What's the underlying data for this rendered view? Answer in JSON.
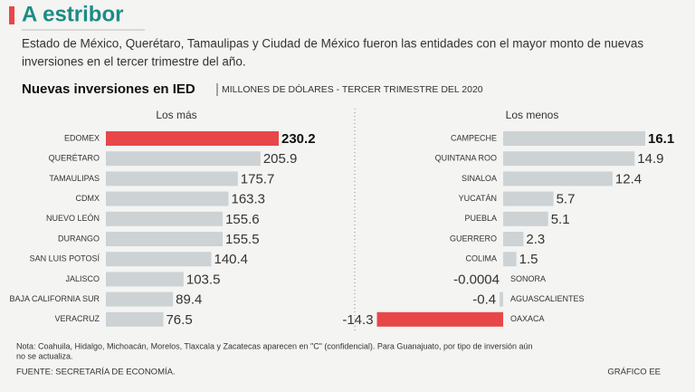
{
  "header": {
    "title": "A estribor",
    "description": [
      "Estado de México, Querétaro, Tamaulipas y Ciudad de México fueron las entidades con el mayor monto de nuevas",
      "inversiones en el tercer trimestre del año."
    ]
  },
  "chart_title": "Nuevas inversiones en IED",
  "chart_subtitle": "MILLONES DE DÓLARES - TERCER TRIMESTRE DEL 2020",
  "chart_data": [
    {
      "type": "bar",
      "orientation": "horizontal",
      "title": "Los más",
      "categories": [
        "EDOMEX",
        "QUERÉTARO",
        "TAMAULIPAS",
        "CDMX",
        "NUEVO LEÓN",
        "DURANGO",
        "SAN LUIS POTOSÍ",
        "JALISCO",
        "BAJA CALIFORNIA SUR",
        "VERACRUZ"
      ],
      "values": [
        230.2,
        205.9,
        175.7,
        163.3,
        155.6,
        155.5,
        140.4,
        103.5,
        89.4,
        76.5
      ],
      "colors": [
        "#e8474a",
        "#cdd2d4",
        "#cdd2d4",
        "#cdd2d4",
        "#cdd2d4",
        "#cdd2d4",
        "#cdd2d4",
        "#cdd2d4",
        "#cdd2d4",
        "#cdd2d4"
      ]
    },
    {
      "type": "bar",
      "orientation": "horizontal",
      "title": "Los menos",
      "categories": [
        "CAMPECHE",
        "QUINTANA ROO",
        "SINALOA",
        "YUCATÁN",
        "PUEBLA",
        "GUERRERO",
        "COLIMA",
        "SONORA",
        "AGUASCALIENTES",
        "OAXACA"
      ],
      "values": [
        16.1,
        14.9,
        12.4,
        5.7,
        5.1,
        2.3,
        1.5,
        -0.0004,
        -0.4,
        -14.3
      ],
      "colors": [
        "#cdd2d4",
        "#cdd2d4",
        "#cdd2d4",
        "#cdd2d4",
        "#cdd2d4",
        "#cdd2d4",
        "#cdd2d4",
        "#cdd2d4",
        "#cdd2d4",
        "#e8474a"
      ]
    }
  ],
  "note": [
    "Nota: Coahuila, Hidalgo, Michoacán, Morelos, Tlaxcala y Zacatecas aparecen en \"C\" (confidencial). Para Guanajuato, por tipo de inversión aún",
    "no se actualiza."
  ],
  "source": "FUENTE: SECRETARÍA DE ECONOMÍA.",
  "credit": "GRÁFICO EE"
}
